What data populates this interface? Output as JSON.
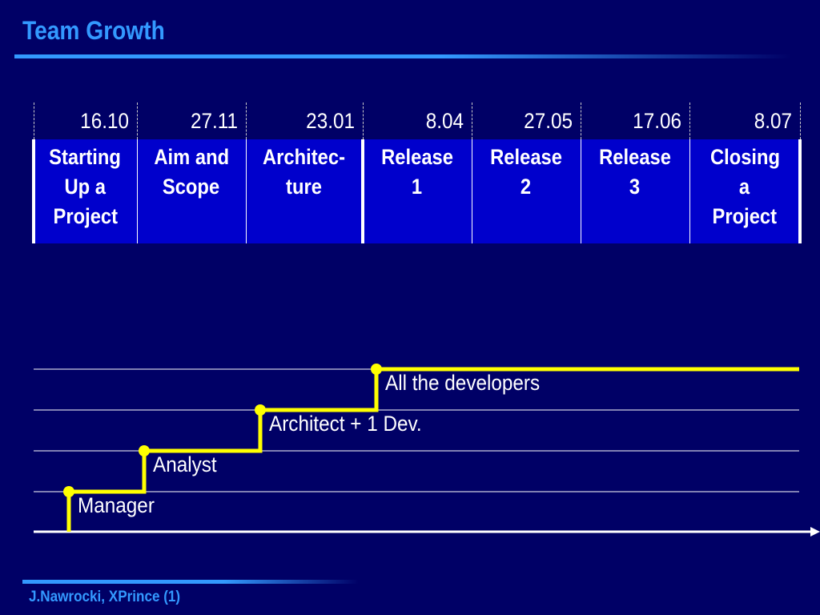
{
  "slide": {
    "title": "Team Growth",
    "footer": "J.Nawrocki, XPrince (1)"
  },
  "dates": [
    "16.10",
    "27.11",
    "23.01",
    "8.04",
    "27.05",
    "17.06",
    "8.07"
  ],
  "phases": [
    {
      "lines": [
        "Starting",
        "Up a",
        "Project"
      ]
    },
    {
      "lines": [
        "Aim and",
        "Scope"
      ]
    },
    {
      "lines": [
        "Architec-",
        "ture"
      ]
    },
    {
      "lines": [
        "Release",
        "1"
      ]
    },
    {
      "lines": [
        "Release",
        "2"
      ]
    },
    {
      "lines": [
        "Release",
        "3"
      ]
    },
    {
      "lines": [
        "Closing",
        "a",
        "Project"
      ]
    }
  ],
  "team_steps": [
    {
      "role": "Manager",
      "level": 1,
      "from_phase": 0
    },
    {
      "role": "Analyst",
      "level": 2,
      "from_phase": 1
    },
    {
      "role": "Architect + 1 Dev.",
      "level": 3,
      "from_phase": 2
    },
    {
      "role": "All the developers",
      "level": 4,
      "from_phase": 3
    }
  ],
  "colors": {
    "background": "#000066",
    "phase_fill": "#0000cc",
    "accent": "#3399ff",
    "step_line": "#ffff00",
    "text": "#ffffff"
  }
}
